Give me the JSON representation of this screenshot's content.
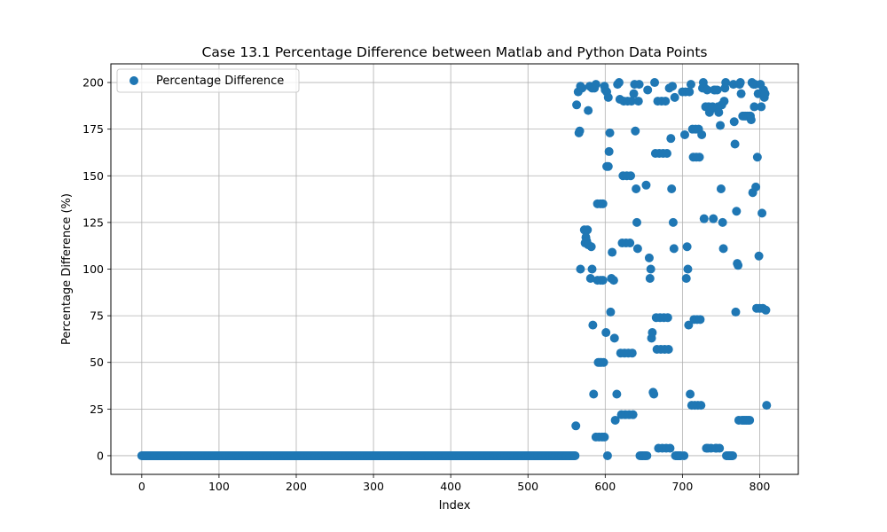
{
  "chart_data": {
    "type": "scatter",
    "title": "Case 13.1 Percentage Difference between Matlab and Python Data Points",
    "xlabel": "Index",
    "ylabel": "Percentage Difference (%)",
    "xlim": [
      -40,
      850
    ],
    "ylim": [
      -10,
      210
    ],
    "xticks": [
      0,
      100,
      200,
      300,
      400,
      500,
      600,
      700,
      800
    ],
    "yticks": [
      0,
      25,
      50,
      75,
      100,
      125,
      150,
      175,
      200
    ],
    "grid": true,
    "legend_position": "top-left",
    "marker_color": "#1f77b4",
    "series": [
      {
        "name": "Percentage Difference",
        "baseline_segment": {
          "x_start": 0,
          "x_end": 561,
          "y": 0
        },
        "points": [
          [
            562,
            16
          ],
          [
            563,
            188
          ],
          [
            565,
            195
          ],
          [
            566,
            173
          ],
          [
            567,
            174
          ],
          [
            568,
            100
          ],
          [
            568,
            198
          ],
          [
            570,
            197
          ],
          [
            573,
            121
          ],
          [
            574,
            114
          ],
          [
            575,
            117
          ],
          [
            576,
            115
          ],
          [
            577,
            121
          ],
          [
            578,
            113
          ],
          [
            578,
            185
          ],
          [
            580,
            198
          ],
          [
            581,
            95
          ],
          [
            582,
            112
          ],
          [
            583,
            100
          ],
          [
            583,
            197
          ],
          [
            584,
            70
          ],
          [
            585,
            33
          ],
          [
            586,
            197
          ],
          [
            588,
            10
          ],
          [
            588,
            199
          ],
          [
            590,
            135
          ],
          [
            590,
            94
          ],
          [
            591,
            50
          ],
          [
            592,
            10
          ],
          [
            593,
            50
          ],
          [
            594,
            135
          ],
          [
            594,
            94
          ],
          [
            595,
            50
          ],
          [
            596,
            10
          ],
          [
            597,
            135
          ],
          [
            597,
            94
          ],
          [
            598,
            50
          ],
          [
            599,
            10
          ],
          [
            599,
            198
          ],
          [
            600,
            196
          ],
          [
            601,
            66
          ],
          [
            602,
            155
          ],
          [
            602,
            195
          ],
          [
            603,
            0
          ],
          [
            604,
            155
          ],
          [
            604,
            192
          ],
          [
            605,
            163
          ],
          [
            606,
            173
          ],
          [
            607,
            77
          ],
          [
            608,
            95
          ],
          [
            609,
            109
          ],
          [
            611,
            94
          ],
          [
            612,
            63
          ],
          [
            613,
            19
          ],
          [
            615,
            33
          ],
          [
            616,
            199
          ],
          [
            618,
            200
          ],
          [
            619,
            191
          ],
          [
            620,
            55
          ],
          [
            621,
            22
          ],
          [
            622,
            114
          ],
          [
            623,
            150
          ],
          [
            624,
            190
          ],
          [
            625,
            55
          ],
          [
            626,
            22
          ],
          [
            627,
            114
          ],
          [
            628,
            150
          ],
          [
            629,
            190
          ],
          [
            630,
            55
          ],
          [
            631,
            22
          ],
          [
            632,
            114
          ],
          [
            633,
            150
          ],
          [
            634,
            190
          ],
          [
            635,
            55
          ],
          [
            636,
            22
          ],
          [
            637,
            194
          ],
          [
            638,
            199
          ],
          [
            639,
            174
          ],
          [
            640,
            143
          ],
          [
            641,
            125
          ],
          [
            642,
            111
          ],
          [
            643,
            190
          ],
          [
            644,
            199
          ],
          [
            645,
            0
          ],
          [
            647,
            0
          ],
          [
            648,
            0
          ],
          [
            649,
            0
          ],
          [
            651,
            0
          ],
          [
            652,
            0
          ],
          [
            653,
            145
          ],
          [
            654,
            0
          ],
          [
            655,
            196
          ],
          [
            657,
            106
          ],
          [
            658,
            95
          ],
          [
            659,
            100
          ],
          [
            660,
            63
          ],
          [
            661,
            66
          ],
          [
            662,
            34
          ],
          [
            663,
            33
          ],
          [
            664,
            200
          ],
          [
            665,
            162
          ],
          [
            666,
            74
          ],
          [
            667,
            57
          ],
          [
            668,
            190
          ],
          [
            669,
            4
          ],
          [
            670,
            162
          ],
          [
            671,
            74
          ],
          [
            672,
            57
          ],
          [
            673,
            190
          ],
          [
            674,
            4
          ],
          [
            675,
            162
          ],
          [
            676,
            74
          ],
          [
            677,
            57
          ],
          [
            678,
            190
          ],
          [
            679,
            4
          ],
          [
            680,
            162
          ],
          [
            681,
            74
          ],
          [
            682,
            57
          ],
          [
            683,
            197
          ],
          [
            684,
            4
          ],
          [
            685,
            170
          ],
          [
            686,
            143
          ],
          [
            687,
            198
          ],
          [
            688,
            125
          ],
          [
            689,
            111
          ],
          [
            690,
            192
          ],
          [
            691,
            0
          ],
          [
            693,
            0
          ],
          [
            694,
            0
          ],
          [
            695,
            0
          ],
          [
            696,
            0
          ],
          [
            697,
            0
          ],
          [
            698,
            0
          ],
          [
            700,
            195
          ],
          [
            702,
            0
          ],
          [
            703,
            172
          ],
          [
            704,
            195
          ],
          [
            705,
            95
          ],
          [
            706,
            112
          ],
          [
            707,
            100
          ],
          [
            708,
            70
          ],
          [
            709,
            195
          ],
          [
            710,
            33
          ],
          [
            711,
            199
          ],
          [
            712,
            27
          ],
          [
            713,
            175
          ],
          [
            714,
            160
          ],
          [
            715,
            73
          ],
          [
            716,
            27
          ],
          [
            717,
            175
          ],
          [
            718,
            160
          ],
          [
            719,
            73
          ],
          [
            720,
            27
          ],
          [
            721,
            175
          ],
          [
            722,
            160
          ],
          [
            723,
            73
          ],
          [
            724,
            27
          ],
          [
            725,
            172
          ],
          [
            726,
            197
          ],
          [
            727,
            200
          ],
          [
            728,
            127
          ],
          [
            729,
            197
          ],
          [
            730,
            187
          ],
          [
            731,
            4
          ],
          [
            732,
            196
          ],
          [
            733,
            4
          ],
          [
            734,
            187
          ],
          [
            735,
            184
          ],
          [
            736,
            186
          ],
          [
            737,
            4
          ],
          [
            738,
            186
          ],
          [
            739,
            187
          ],
          [
            740,
            127
          ],
          [
            741,
            196
          ],
          [
            742,
            196
          ],
          [
            743,
            4
          ],
          [
            744,
            4
          ],
          [
            745,
            196
          ],
          [
            746,
            187
          ],
          [
            747,
            184
          ],
          [
            748,
            4
          ],
          [
            749,
            177
          ],
          [
            750,
            143
          ],
          [
            751,
            188
          ],
          [
            752,
            125
          ],
          [
            753,
            111
          ],
          [
            754,
            190
          ],
          [
            755,
            197
          ],
          [
            756,
            200
          ],
          [
            757,
            0
          ],
          [
            758,
            0
          ],
          [
            760,
            0
          ],
          [
            761,
            0
          ],
          [
            762,
            0
          ],
          [
            763,
            0
          ],
          [
            764,
            0
          ],
          [
            765,
            0
          ],
          [
            766,
            199
          ],
          [
            767,
            179
          ],
          [
            768,
            167
          ],
          [
            769,
            77
          ],
          [
            770,
            131
          ],
          [
            771,
            103
          ],
          [
            772,
            102
          ],
          [
            773,
            19
          ],
          [
            774,
            199
          ],
          [
            775,
            200
          ],
          [
            776,
            194
          ],
          [
            777,
            19
          ],
          [
            778,
            182
          ],
          [
            779,
            19
          ],
          [
            780,
            182
          ],
          [
            781,
            19
          ],
          [
            782,
            182
          ],
          [
            783,
            19
          ],
          [
            784,
            182
          ],
          [
            785,
            19
          ],
          [
            786,
            182
          ],
          [
            787,
            19
          ],
          [
            788,
            182
          ],
          [
            789,
            180
          ],
          [
            790,
            200
          ],
          [
            791,
            141
          ],
          [
            792,
            199
          ],
          [
            793,
            187
          ],
          [
            794,
            199
          ],
          [
            795,
            144
          ],
          [
            796,
            79
          ],
          [
            797,
            160
          ],
          [
            798,
            194
          ],
          [
            799,
            107
          ],
          [
            800,
            79
          ],
          [
            801,
            199
          ],
          [
            802,
            187
          ],
          [
            803,
            130
          ],
          [
            804,
            79
          ],
          [
            805,
            196
          ],
          [
            806,
            192
          ],
          [
            807,
            194
          ],
          [
            808,
            78
          ],
          [
            809,
            27
          ]
        ]
      }
    ]
  }
}
